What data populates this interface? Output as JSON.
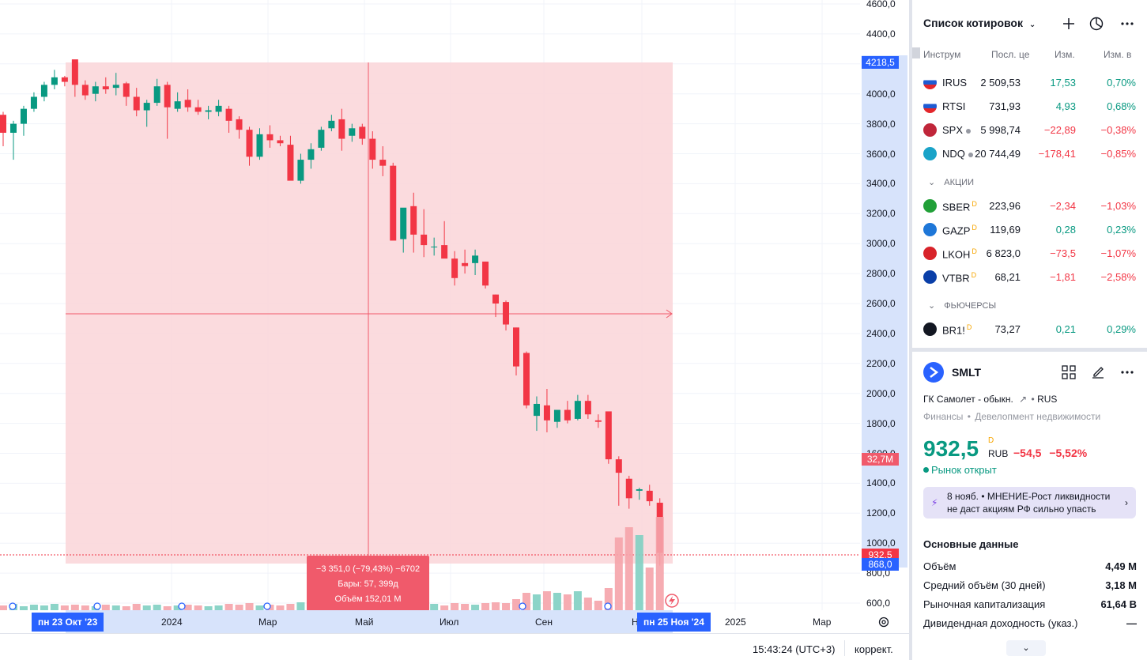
{
  "chart": {
    "price_ticks": [
      "4600,0",
      "4400,0",
      "4200,0",
      "4000,0",
      "3800,0",
      "3600,0",
      "3400,0",
      "3200,0",
      "3000,0",
      "2800,0",
      "2600,0",
      "2400,0",
      "2200,0",
      "2000,0",
      "1800,0",
      "1600,0",
      "1400,0",
      "1200,0",
      "1000,0",
      "800,0",
      "600,0"
    ],
    "price_tag_top": "4218,5",
    "price_tag_volume": "32,7M",
    "price_tag_last": "932,5",
    "price_tag_low": "868,0",
    "time_labels": [
      "2024",
      "Мар",
      "Май",
      "Июл",
      "Сен",
      "Н",
      "2025",
      "Мар"
    ],
    "time_tag_start": "пн 23 Окт '23",
    "time_tag_end": "пн 25 Ноя '24",
    "measure": {
      "line1": "−3 351,0 (−79,43%) −6702",
      "line2": "Бары: 57, 399д",
      "line3": "Объём 152,01 M"
    },
    "colors": {
      "up": "#089981",
      "down": "#f23645",
      "range_fill": "#fbd7da",
      "tag_blue": "#2962ff",
      "tag_red": "#f05a6b"
    }
  },
  "status": {
    "clock": "15:43:24 (UTC+3)",
    "adjust": "коррект."
  },
  "watchlist": {
    "title": "Список котировок",
    "columns": {
      "symbol": "Инструм",
      "last": "Посл. це",
      "chg": "Изм.",
      "chgp": "Изм. в"
    },
    "indices": [
      {
        "sym": "IRUS",
        "last": "2 509,53",
        "chg": "17,53",
        "chgp": "0,70%",
        "dir": "pos",
        "icon": "russia-flag-icon",
        "mark": ""
      },
      {
        "sym": "RTSI",
        "last": "731,93",
        "chg": "4,93",
        "chgp": "0,68%",
        "dir": "pos",
        "icon": "russia-flag-icon",
        "mark": ""
      },
      {
        "sym": "SPX",
        "last": "5 998,74",
        "chg": "−22,89",
        "chgp": "−0,38%",
        "dir": "neg",
        "icon": "sp500-icon",
        "mark": "dot"
      },
      {
        "sym": "NDQ",
        "last": "20 744,49",
        "chg": "−178,41",
        "chgp": "−0,85%",
        "dir": "neg",
        "icon": "nasdaq100-icon",
        "mark": "dot"
      }
    ],
    "stocks_label": "АКЦИИ",
    "stocks": [
      {
        "sym": "SBER",
        "last": "223,96",
        "chg": "−2,34",
        "chgp": "−1,03%",
        "dir": "neg",
        "icon": "sber-icon",
        "mark": "D"
      },
      {
        "sym": "GAZP",
        "last": "119,69",
        "chg": "0,28",
        "chgp": "0,23%",
        "dir": "pos",
        "icon": "gazprom-icon",
        "mark": "D"
      },
      {
        "sym": "LKOH",
        "last": "6 823,0",
        "chg": "−73,5",
        "chgp": "−1,07%",
        "dir": "neg",
        "icon": "lukoil-icon",
        "mark": "D"
      },
      {
        "sym": "VTBR",
        "last": "68,21",
        "chg": "−1,81",
        "chgp": "−2,58%",
        "dir": "neg",
        "icon": "vtb-icon",
        "mark": "D"
      }
    ],
    "futures_label": "ФЬЮЧЕРСЫ",
    "futures": [
      {
        "sym": "BR1!",
        "last": "73,27",
        "chg": "0,21",
        "chgp": "0,29%",
        "dir": "pos",
        "icon": "oil-drop-icon",
        "mark": "D"
      }
    ]
  },
  "details": {
    "symbol": "SMLT",
    "name": "ГК Самолет - обыкн.",
    "exchange": "RUS",
    "sector": "Финансы",
    "industry": "Девелопмент недвижимости",
    "price": "932,5",
    "currency": "RUB",
    "d_mark": "D",
    "change": "−54,5",
    "change_pct": "−5,52%",
    "market_status": "Рынок открыт",
    "news": "8 нояб. • МНЕНИЕ-Рост ликвидности не даст акциям РФ сильно упасть",
    "fundamentals_title": "Основные данные",
    "fundamentals": [
      {
        "label": "Объём",
        "value": "4,49 M"
      },
      {
        "label": "Средний объём (30 дней)",
        "value": "3,18 M"
      },
      {
        "label": "Рыночная капитализация",
        "value": "61,64 B"
      },
      {
        "label": "Дивидендная доходность (указ.)",
        "value": "—"
      }
    ]
  }
}
